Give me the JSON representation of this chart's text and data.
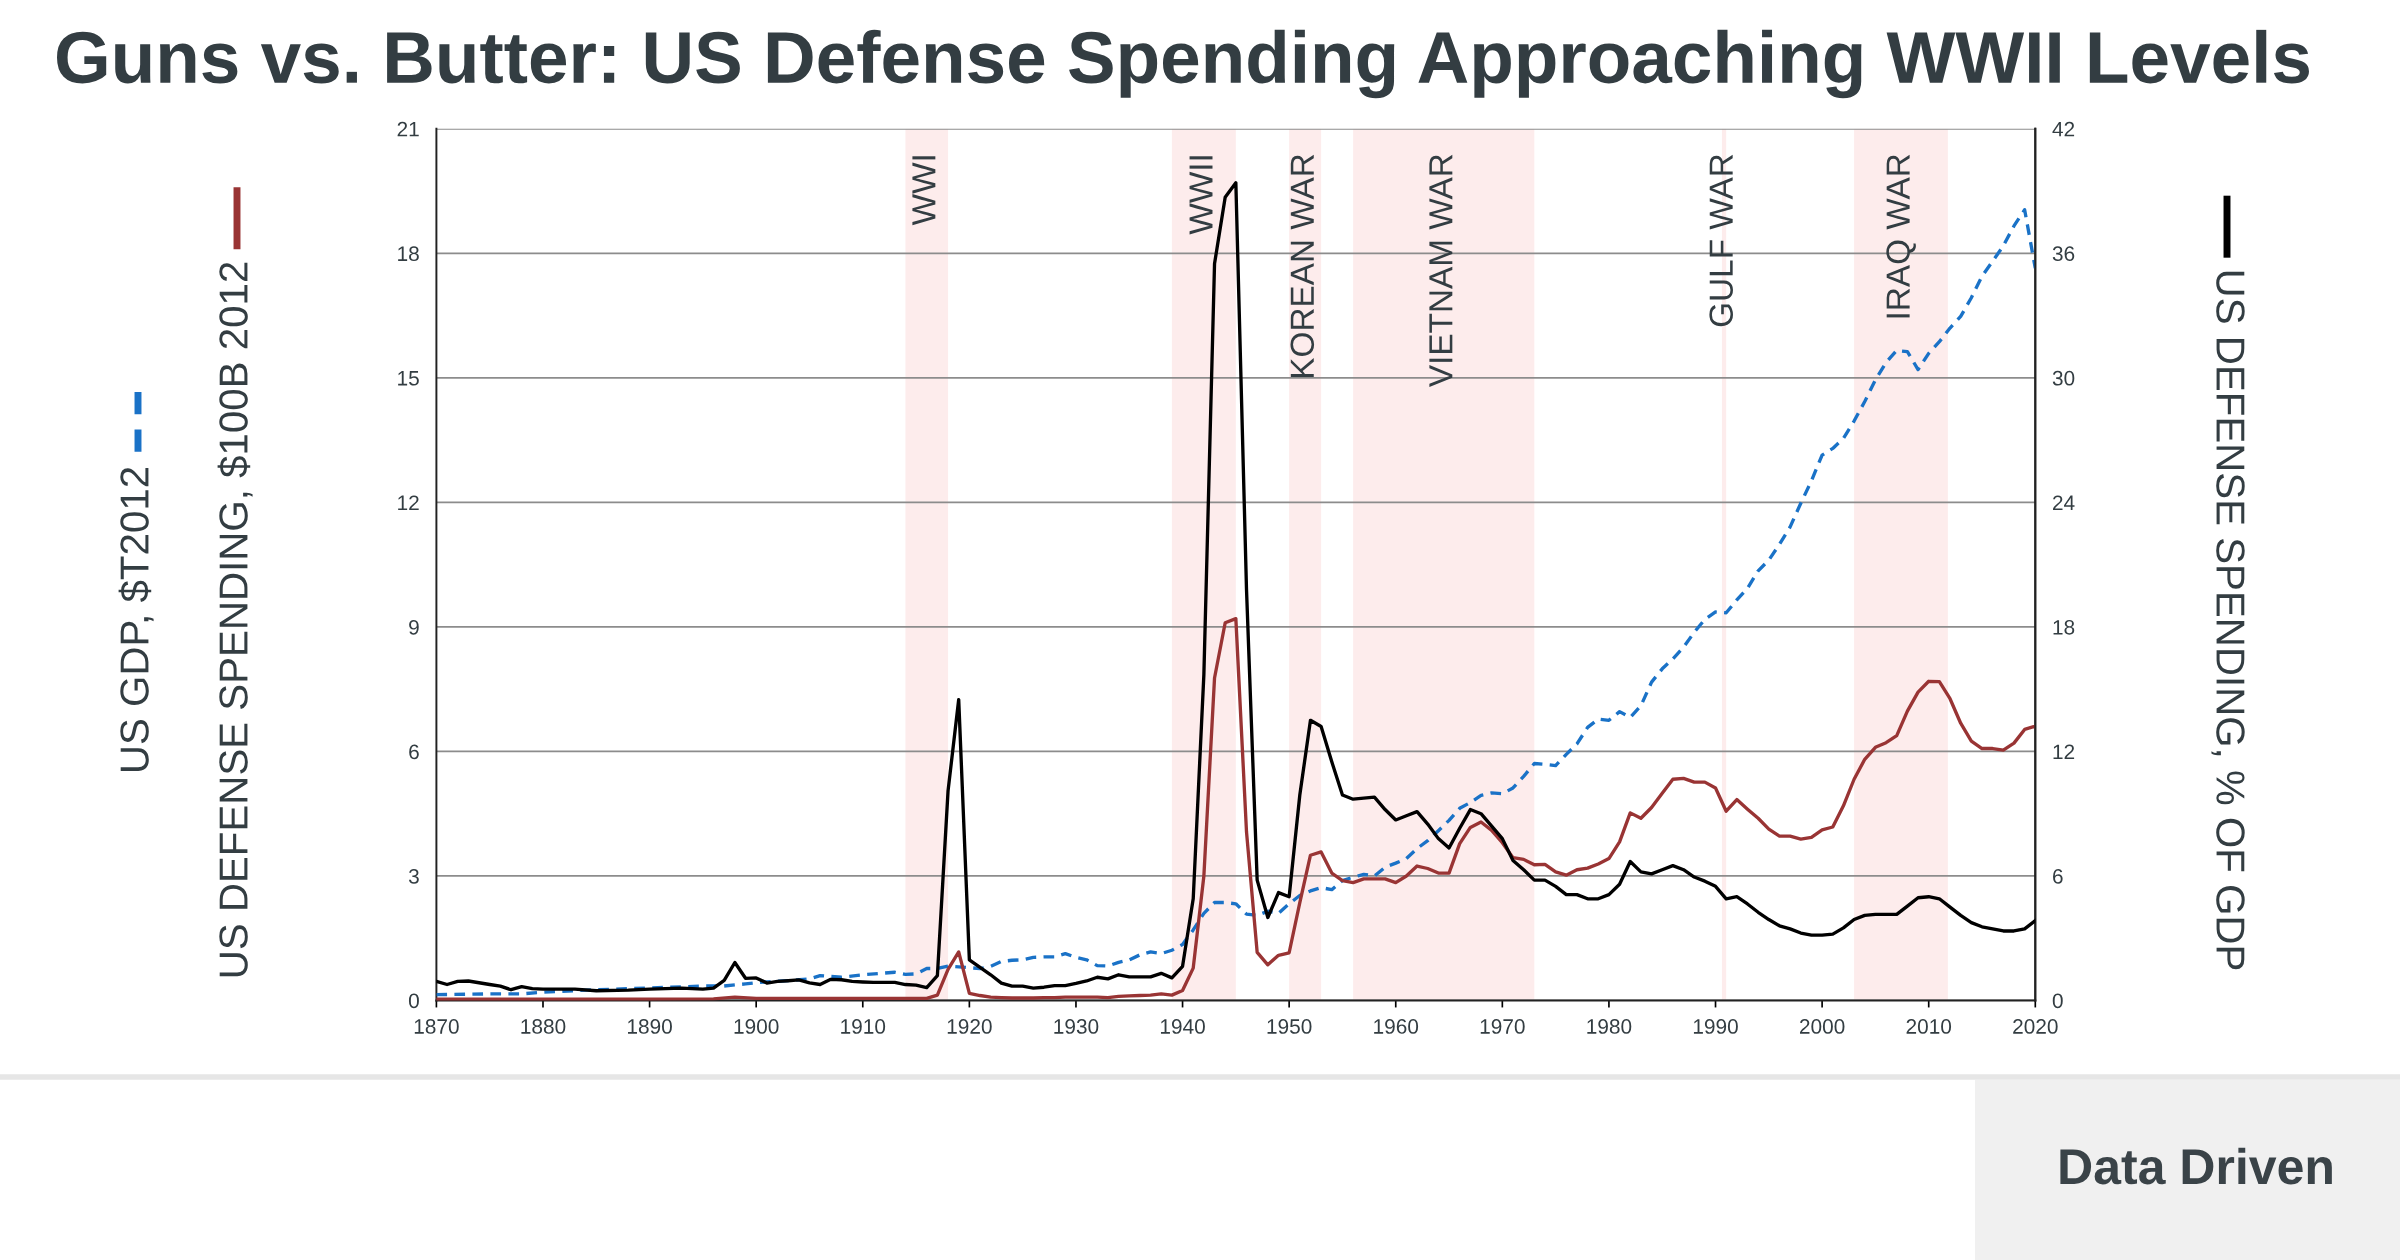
{
  "chart_data": {
    "type": "line",
    "title": "Guns vs. Butter: US Defense Spending Approaching WWII Levels",
    "xlim": [
      1870,
      2020
    ],
    "xticks": [
      1870,
      1880,
      1890,
      1900,
      1910,
      1920,
      1930,
      1940,
      1950,
      1960,
      1970,
      1980,
      1990,
      2000,
      2010,
      2020
    ],
    "ylim": [
      0,
      21
    ],
    "yticks": [
      0,
      3,
      6,
      9,
      12,
      15,
      18,
      21
    ],
    "y2lim": [
      0,
      42
    ],
    "y2ticks": [
      0,
      6,
      12,
      18,
      24,
      30,
      36,
      42
    ],
    "grid": "y",
    "legend": "left",
    "bands": [
      {
        "axis": "x",
        "from": 1914,
        "to": 1918,
        "label": "WWI",
        "color": "#fdecec"
      },
      {
        "axis": "x",
        "from": 1939,
        "to": 1945,
        "label": "WWII",
        "color": "#fdecec"
      },
      {
        "axis": "x",
        "from": 1950,
        "to": 1953,
        "label": "KOREAN WAR",
        "color": "#fdecec"
      },
      {
        "axis": "x",
        "from": 1956,
        "to": 1973,
        "label": "VIETNAM WAR",
        "color": "#fdecec"
      },
      {
        "axis": "x",
        "from": 1990.6,
        "to": 1991,
        "label": "GULF WAR",
        "color": "#fdecec"
      },
      {
        "axis": "x",
        "from": 2003,
        "to": 2011.8,
        "label": "IRAQ WAR",
        "color": "#fdecec"
      }
    ],
    "annotations": [
      "Data Driven"
    ],
    "series": [
      {
        "name": "US GDP, $T2012",
        "color": "#1a72c7",
        "line_style": "dashed",
        "x": [
          1870,
          1875,
          1878,
          1880,
          1885,
          1890,
          1895,
          1897,
          1899,
          1900,
          1903,
          1905,
          1906,
          1907,
          1908,
          1910,
          1913,
          1914,
          1915,
          1916,
          1917,
          1918,
          1919,
          1920,
          1921,
          1922,
          1923,
          1924,
          1925,
          1926,
          1927,
          1928,
          1929,
          1930,
          1931,
          1932,
          1933,
          1934,
          1935,
          1936,
          1937,
          1938,
          1939,
          1940,
          1941,
          1942,
          1943,
          1944,
          1945,
          1946,
          1947,
          1948,
          1949,
          1950,
          1951,
          1952,
          1953,
          1954,
          1955,
          1956,
          1957,
          1958,
          1959,
          1960,
          1961,
          1962,
          1963,
          1964,
          1965,
          1966,
          1967,
          1968,
          1969,
          1970,
          1971,
          1972,
          1973,
          1974,
          1975,
          1976,
          1977,
          1978,
          1979,
          1980,
          1981,
          1982,
          1983,
          1984,
          1985,
          1986,
          1987,
          1988,
          1989,
          1990,
          1991,
          1992,
          1993,
          1994,
          1995,
          1996,
          1997,
          1998,
          1999,
          2000,
          2001,
          2002,
          2003,
          2004,
          2005,
          2006,
          2007,
          2008,
          2009,
          2010,
          2011,
          2012,
          2013,
          2014,
          2015,
          2016,
          2017,
          2018,
          2019,
          2020
        ],
        "values": [
          0.14,
          0.16,
          0.16,
          0.2,
          0.26,
          0.3,
          0.35,
          0.35,
          0.4,
          0.43,
          0.48,
          0.52,
          0.6,
          0.58,
          0.56,
          0.62,
          0.68,
          0.63,
          0.64,
          0.77,
          0.77,
          0.83,
          0.81,
          0.79,
          0.77,
          0.82,
          0.94,
          0.97,
          0.98,
          1.04,
          1.05,
          1.05,
          1.13,
          1.04,
          0.98,
          0.84,
          0.83,
          0.92,
          0.98,
          1.1,
          1.17,
          1.13,
          1.21,
          1.35,
          1.7,
          2.1,
          2.36,
          2.36,
          2.33,
          2.08,
          2.05,
          2.15,
          2.1,
          2.33,
          2.53,
          2.64,
          2.72,
          2.67,
          2.89,
          2.97,
          3.04,
          3.0,
          3.21,
          3.31,
          3.42,
          3.66,
          3.85,
          4.09,
          4.34,
          4.63,
          4.77,
          4.94,
          5.0,
          4.98,
          5.12,
          5.4,
          5.71,
          5.69,
          5.66,
          5.93,
          6.18,
          6.58,
          6.78,
          6.75,
          6.96,
          6.82,
          7.1,
          7.67,
          7.99,
          8.23,
          8.51,
          8.87,
          9.18,
          9.36,
          9.34,
          9.65,
          9.93,
          10.35,
          10.61,
          10.99,
          11.41,
          11.98,
          12.52,
          13.14,
          13.3,
          13.54,
          13.96,
          14.43,
          14.95,
          15.37,
          15.66,
          15.63,
          15.2,
          15.59,
          15.87,
          16.2,
          16.48,
          16.93,
          17.45,
          17.81,
          18.18,
          18.66,
          19.05,
          17.64
        ]
      },
      {
        "name": "US DEFENSE SPENDING, $100B 2012",
        "color": "#993434",
        "x": [
          1870,
          1880,
          1890,
          1896,
          1898,
          1900,
          1905,
          1910,
          1916,
          1917,
          1918,
          1919,
          1920,
          1921,
          1922,
          1923,
          1924,
          1925,
          1926,
          1927,
          1928,
          1929,
          1930,
          1931,
          1932,
          1933,
          1934,
          1935,
          1936,
          1937,
          1938,
          1939,
          1940,
          1941,
          1942,
          1943,
          1944,
          1945,
          1946,
          1947,
          1948,
          1949,
          1950,
          1951,
          1952,
          1953,
          1954,
          1955,
          1956,
          1957,
          1958,
          1959,
          1960,
          1961,
          1962,
          1963,
          1964,
          1965,
          1966,
          1967,
          1968,
          1969,
          1970,
          1971,
          1972,
          1973,
          1974,
          1975,
          1976,
          1977,
          1978,
          1979,
          1980,
          1981,
          1982,
          1983,
          1984,
          1985,
          1986,
          1987,
          1988,
          1989,
          1990,
          1991,
          1992,
          1993,
          1994,
          1995,
          1996,
          1997,
          1998,
          1999,
          2000,
          2001,
          2002,
          2003,
          2004,
          2005,
          2006,
          2007,
          2008,
          2009,
          2010,
          2011,
          2012,
          2013,
          2014,
          2015,
          2016,
          2017,
          2018,
          2019,
          2020
        ],
        "values": [
          0.03,
          0.03,
          0.03,
          0.04,
          0.08,
          0.05,
          0.05,
          0.05,
          0.05,
          0.13,
          0.75,
          1.17,
          0.17,
          0.12,
          0.08,
          0.07,
          0.06,
          0.06,
          0.06,
          0.07,
          0.07,
          0.08,
          0.08,
          0.08,
          0.08,
          0.07,
          0.1,
          0.11,
          0.12,
          0.13,
          0.16,
          0.13,
          0.24,
          0.78,
          3.0,
          7.77,
          9.1,
          9.2,
          4.06,
          1.16,
          0.86,
          1.09,
          1.15,
          2.36,
          3.5,
          3.58,
          3.07,
          2.89,
          2.84,
          2.93,
          2.93,
          2.93,
          2.84,
          3.0,
          3.24,
          3.18,
          3.07,
          3.07,
          3.78,
          4.17,
          4.3,
          4.1,
          3.8,
          3.44,
          3.4,
          3.27,
          3.28,
          3.1,
          3.02,
          3.15,
          3.19,
          3.29,
          3.42,
          3.82,
          4.52,
          4.39,
          4.65,
          4.99,
          5.33,
          5.35,
          5.26,
          5.26,
          5.12,
          4.56,
          4.84,
          4.61,
          4.39,
          4.13,
          3.96,
          3.96,
          3.89,
          3.93,
          4.11,
          4.18,
          4.69,
          5.33,
          5.81,
          6.1,
          6.21,
          6.38,
          6.97,
          7.43,
          7.69,
          7.68,
          7.27,
          6.68,
          6.25,
          6.07,
          6.07,
          6.03,
          6.2,
          6.53,
          6.61
        ]
      },
      {
        "name": "US DEFENSE SPENDING, % OF GDP",
        "color": "#000000",
        "axis": "y2",
        "x": [
          1870,
          1871,
          1872,
          1873,
          1875,
          1876,
          1877,
          1878,
          1879,
          1880,
          1883,
          1885,
          1888,
          1890,
          1893,
          1895,
          1896,
          1897,
          1898,
          1899,
          1900,
          1901,
          1902,
          1903,
          1904,
          1905,
          1906,
          1907,
          1908,
          1909,
          1910,
          1911,
          1912,
          1913,
          1914,
          1915,
          1916,
          1917,
          1918,
          1919,
          1920,
          1921,
          1922,
          1923,
          1924,
          1925,
          1926,
          1927,
          1928,
          1929,
          1930,
          1931,
          1932,
          1933,
          1934,
          1935,
          1936,
          1937,
          1938,
          1939,
          1940,
          1941,
          1942,
          1943,
          1944,
          1945,
          1946,
          1947,
          1948,
          1949,
          1950,
          1951,
          1952,
          1953,
          1954,
          1955,
          1956,
          1957,
          1958,
          1959,
          1960,
          1961,
          1962,
          1963,
          1964,
          1965,
          1966,
          1967,
          1968,
          1969,
          1970,
          1971,
          1972,
          1973,
          1974,
          1975,
          1976,
          1977,
          1978,
          1979,
          1980,
          1981,
          1982,
          1983,
          1984,
          1985,
          1986,
          1987,
          1988,
          1989,
          1990,
          1991,
          1992,
          1993,
          1994,
          1995,
          1996,
          1997,
          1998,
          1999,
          2000,
          2001,
          2002,
          2003,
          2004,
          2005,
          2006,
          2007,
          2008,
          2009,
          2010,
          2011,
          2012,
          2013,
          2014,
          2015,
          2016,
          2017,
          2018,
          2019,
          2020
        ],
        "values": [
          0.92,
          0.77,
          0.92,
          0.94,
          0.77,
          0.69,
          0.52,
          0.67,
          0.57,
          0.55,
          0.55,
          0.47,
          0.5,
          0.55,
          0.6,
          0.55,
          0.6,
          0.97,
          1.83,
          1.07,
          1.09,
          0.84,
          0.92,
          0.95,
          0.99,
          0.85,
          0.77,
          1.02,
          1.0,
          0.92,
          0.89,
          0.87,
          0.87,
          0.87,
          0.77,
          0.74,
          0.62,
          1.2,
          10.1,
          14.5,
          1.96,
          1.6,
          1.24,
          0.84,
          0.69,
          0.69,
          0.6,
          0.64,
          0.72,
          0.72,
          0.82,
          0.94,
          1.12,
          1.04,
          1.24,
          1.14,
          1.14,
          1.14,
          1.31,
          1.09,
          1.65,
          4.9,
          15.7,
          35.5,
          38.7,
          39.4,
          19.8,
          5.8,
          4.0,
          5.2,
          5.0,
          9.9,
          13.5,
          13.2,
          11.5,
          9.9,
          9.7,
          9.75,
          9.8,
          9.2,
          8.7,
          8.9,
          9.1,
          8.5,
          7.8,
          7.35,
          8.3,
          9.2,
          9.0,
          8.4,
          7.8,
          6.75,
          6.3,
          5.8,
          5.8,
          5.5,
          5.1,
          5.1,
          4.9,
          4.9,
          5.1,
          5.6,
          6.7,
          6.2,
          6.1,
          6.3,
          6.5,
          6.3,
          5.95,
          5.75,
          5.5,
          4.9,
          5.0,
          4.65,
          4.25,
          3.9,
          3.6,
          3.45,
          3.25,
          3.15,
          3.15,
          3.2,
          3.5,
          3.9,
          4.1,
          4.15,
          4.15,
          4.15,
          4.55,
          4.95,
          5.0,
          4.9,
          4.5,
          4.1,
          3.75,
          3.55,
          3.45,
          3.35,
          3.35,
          3.45,
          3.85
        ]
      }
    ]
  }
}
